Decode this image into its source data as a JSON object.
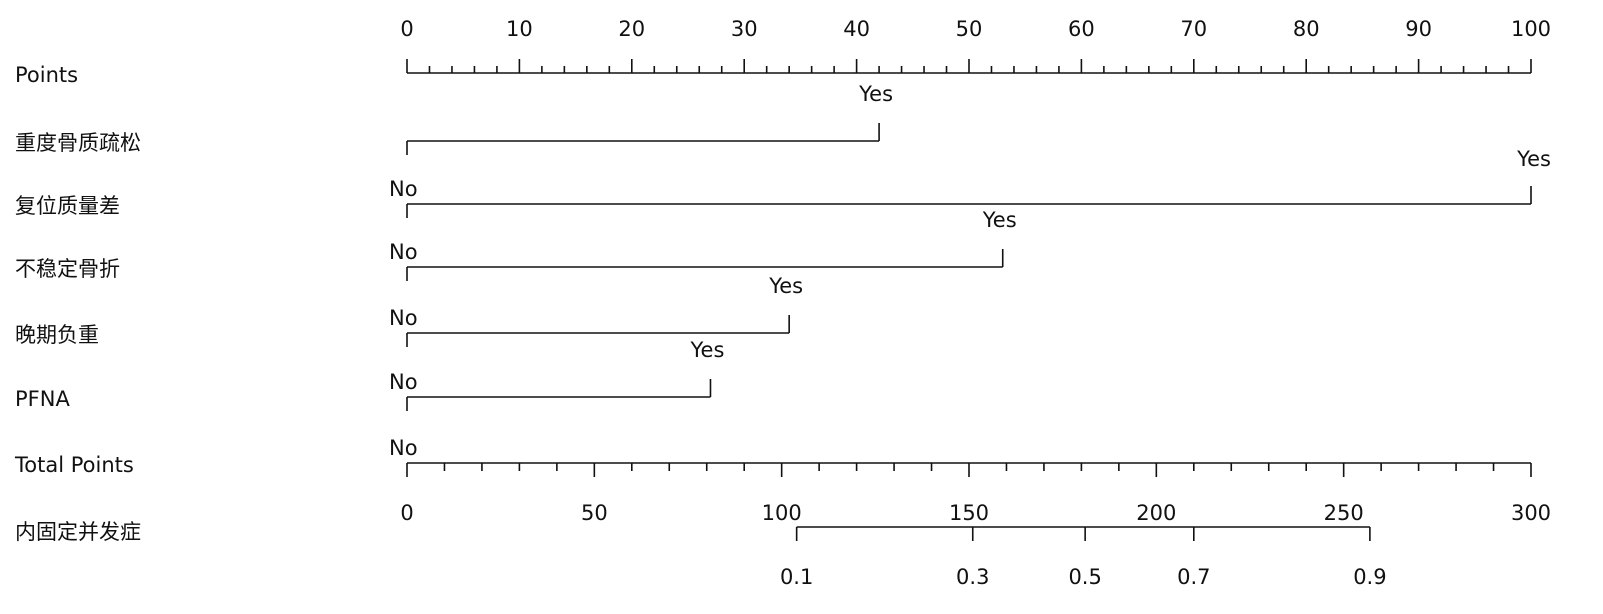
{
  "chart_data": {
    "type": "nomogram",
    "points_axis": {
      "label": "Points",
      "lim": [
        0,
        100
      ],
      "ticks": [
        0,
        10,
        20,
        30,
        40,
        50,
        60,
        70,
        80,
        90,
        100
      ],
      "minor_ticks": [
        2,
        4,
        6,
        8,
        12,
        14,
        16,
        18,
        22,
        24,
        26,
        28,
        32,
        34,
        36,
        38,
        42,
        44,
        46,
        48,
        52,
        54,
        56,
        58,
        62,
        64,
        66,
        68,
        72,
        74,
        76,
        78,
        82,
        84,
        86,
        88,
        92,
        94,
        96,
        98
      ]
    },
    "variables": [
      {
        "name": "重度骨质疏松",
        "levels": [
          "No",
          "Yes"
        ],
        "points": [
          0,
          42
        ]
      },
      {
        "name": "复位质量差",
        "levels": [
          "No",
          "Yes"
        ],
        "points": [
          0,
          100
        ]
      },
      {
        "name": "不稳定骨折",
        "levels": [
          "No",
          "Yes"
        ],
        "points": [
          0,
          53
        ]
      },
      {
        "name": "晚期负重",
        "levels": [
          "No",
          "Yes"
        ],
        "points": [
          0,
          34
        ]
      },
      {
        "name": "PFNA",
        "levels": [
          "No",
          "Yes"
        ],
        "points": [
          0,
          27
        ]
      }
    ],
    "total_points_axis": {
      "label": "Total Points",
      "lim": [
        0,
        300
      ],
      "ticks": [
        0,
        50,
        100,
        150,
        200,
        250,
        300
      ],
      "minor_ticks": [
        10,
        20,
        30,
        40,
        60,
        70,
        80,
        90,
        110,
        120,
        130,
        140,
        160,
        170,
        180,
        190,
        210,
        220,
        230,
        240,
        260,
        270,
        280,
        290
      ]
    },
    "risk_axis": {
      "label": "内固定并发症",
      "points": [
        104,
        151,
        181,
        210,
        257
      ],
      "ticks": [
        0.1,
        0.3,
        0.5,
        0.7,
        0.9
      ]
    }
  }
}
